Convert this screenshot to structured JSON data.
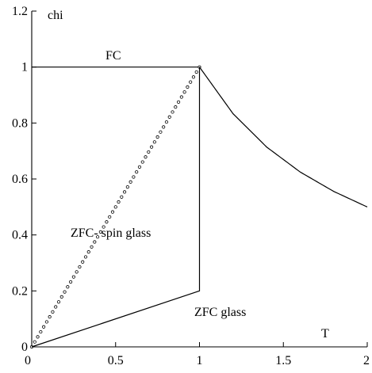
{
  "chart_data": {
    "type": "line",
    "title": "",
    "xlabel": "T",
    "ylabel": "chi",
    "xlim": [
      0,
      2
    ],
    "ylim": [
      0,
      1.2
    ],
    "x_ticks": [
      "0",
      "0.5",
      "1",
      "1.5",
      "2"
    ],
    "y_ticks": [
      "0",
      "0.2",
      "0.4",
      "0.6",
      "0.8",
      "1",
      "1.2"
    ],
    "grid": false,
    "annotations": [
      "FC",
      "ZFC- spin glass",
      "ZFC  glass"
    ],
    "series": [
      {
        "style": "solid",
        "x": [
          0,
          1
        ],
        "y": [
          1,
          1
        ]
      },
      {
        "style": "dotted",
        "x": [
          0,
          1
        ],
        "y": [
          0,
          1
        ]
      },
      {
        "style": "solid",
        "x": [
          0,
          1,
          1,
          1
        ],
        "y": [
          0,
          0.2,
          0.2,
          1
        ]
      },
      {
        "style": "solid",
        "x": [
          1,
          1.2,
          1.4,
          1.6,
          1.8,
          2
        ],
        "y": [
          1,
          0.8333,
          0.7143,
          0.625,
          0.5556,
          0.5
        ]
      }
    ]
  }
}
